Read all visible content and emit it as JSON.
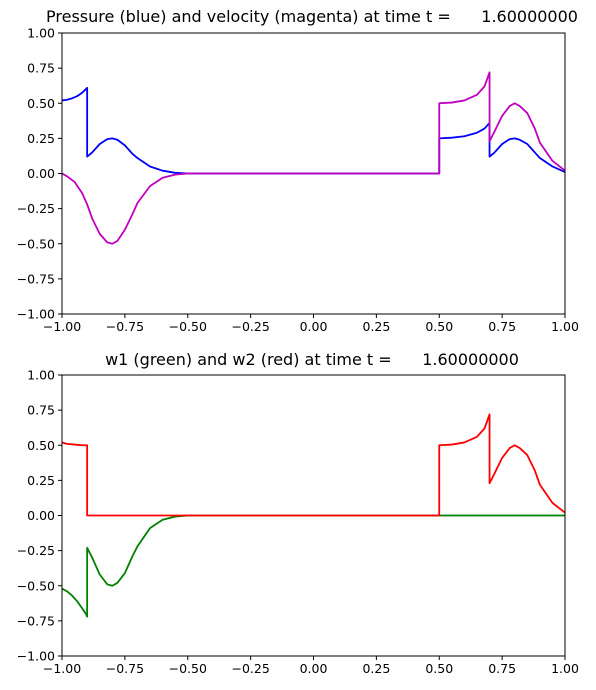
{
  "chart_data": [
    {
      "type": "line",
      "title": "Pressure (blue) and velocity (magenta) at time t =      1.60000000",
      "xlim": [
        -1.0,
        1.0
      ],
      "ylim": [
        -1.0,
        1.0
      ],
      "xticks": [
        "−1.00",
        "−0.75",
        "−0.50",
        "−0.25",
        "0.00",
        "0.25",
        "0.50",
        "0.75",
        "1.00"
      ],
      "yticks": [
        "−1.00",
        "−0.75",
        "−0.50",
        "−0.25",
        "0.00",
        "0.25",
        "0.50",
        "0.75",
        "1.00"
      ],
      "grid": false,
      "series": [
        {
          "color": "#0000ff",
          "x": [
            -1.0,
            -0.98,
            -0.96,
            -0.94,
            -0.92,
            -0.905,
            -0.9,
            -0.9,
            -0.88,
            -0.85,
            -0.82,
            -0.8,
            -0.78,
            -0.75,
            -0.72,
            -0.7,
            -0.65,
            -0.6,
            -0.55,
            -0.5,
            0.0,
            0.5,
            0.5,
            0.55,
            0.6,
            0.65,
            0.68,
            0.7,
            0.7,
            0.72,
            0.75,
            0.78,
            0.8,
            0.82,
            0.85,
            0.88,
            0.9,
            0.95,
            1.0
          ],
          "y": [
            0.52,
            0.525,
            0.535,
            0.55,
            0.575,
            0.6,
            0.61,
            0.12,
            0.15,
            0.21,
            0.245,
            0.25,
            0.24,
            0.2,
            0.14,
            0.11,
            0.05,
            0.02,
            0.005,
            0.0,
            0.0,
            0.0,
            0.25,
            0.255,
            0.265,
            0.29,
            0.32,
            0.36,
            0.12,
            0.15,
            0.21,
            0.245,
            0.25,
            0.24,
            0.21,
            0.15,
            0.11,
            0.05,
            0.01
          ]
        },
        {
          "color": "#bf00bf",
          "x": [
            -1.0,
            -0.98,
            -0.95,
            -0.92,
            -0.9,
            -0.88,
            -0.85,
            -0.82,
            -0.8,
            -0.78,
            -0.75,
            -0.72,
            -0.7,
            -0.65,
            -0.6,
            -0.55,
            -0.5,
            0.0,
            0.5,
            0.5,
            0.55,
            0.6,
            0.65,
            0.68,
            0.7,
            0.7,
            0.72,
            0.75,
            0.78,
            0.8,
            0.82,
            0.85,
            0.88,
            0.9,
            0.95,
            1.0
          ],
          "y": [
            0.0,
            -0.02,
            -0.06,
            -0.14,
            -0.22,
            -0.32,
            -0.43,
            -0.49,
            -0.5,
            -0.48,
            -0.4,
            -0.29,
            -0.21,
            -0.09,
            -0.03,
            -0.008,
            0.0,
            0.0,
            0.0,
            0.5,
            0.505,
            0.52,
            0.56,
            0.62,
            0.72,
            0.23,
            0.3,
            0.41,
            0.48,
            0.5,
            0.48,
            0.43,
            0.32,
            0.22,
            0.09,
            0.02
          ]
        }
      ]
    },
    {
      "type": "line",
      "title": "w1 (green) and w2 (red) at time t =      1.60000000",
      "xlim": [
        -1.0,
        1.0
      ],
      "ylim": [
        -1.0,
        1.0
      ],
      "xticks": [
        "−1.00",
        "−0.75",
        "−0.50",
        "−0.25",
        "0.00",
        "0.25",
        "0.50",
        "0.75",
        "1.00"
      ],
      "yticks": [
        "−1.00",
        "−0.75",
        "−0.50",
        "−0.25",
        "0.00",
        "0.25",
        "0.50",
        "0.75",
        "1.00"
      ],
      "grid": false,
      "series": [
        {
          "color": "#008000",
          "x": [
            -1.0,
            -0.98,
            -0.96,
            -0.94,
            -0.92,
            -0.905,
            -0.9,
            -0.9,
            -0.88,
            -0.85,
            -0.82,
            -0.8,
            -0.78,
            -0.75,
            -0.72,
            -0.7,
            -0.65,
            -0.6,
            -0.55,
            -0.5,
            0.0,
            0.5,
            1.0
          ],
          "y": [
            -0.52,
            -0.54,
            -0.57,
            -0.61,
            -0.66,
            -0.7,
            -0.72,
            -0.23,
            -0.3,
            -0.42,
            -0.49,
            -0.5,
            -0.48,
            -0.41,
            -0.29,
            -0.22,
            -0.09,
            -0.03,
            -0.008,
            0.0,
            0.0,
            0.0,
            0.0
          ]
        },
        {
          "color": "#ff0000",
          "x": [
            -1.0,
            -0.98,
            -0.95,
            -0.92,
            -0.9,
            -0.9,
            -0.5,
            0.0,
            0.5,
            0.5,
            0.55,
            0.6,
            0.65,
            0.68,
            0.7,
            0.7,
            0.72,
            0.75,
            0.78,
            0.8,
            0.82,
            0.85,
            0.88,
            0.9,
            0.95,
            1.0
          ],
          "y": [
            0.52,
            0.51,
            0.505,
            0.5,
            0.5,
            0.0,
            0.0,
            0.0,
            0.0,
            0.5,
            0.505,
            0.52,
            0.56,
            0.62,
            0.72,
            0.23,
            0.3,
            0.41,
            0.48,
            0.5,
            0.48,
            0.43,
            0.32,
            0.22,
            0.09,
            0.02
          ]
        }
      ]
    }
  ]
}
